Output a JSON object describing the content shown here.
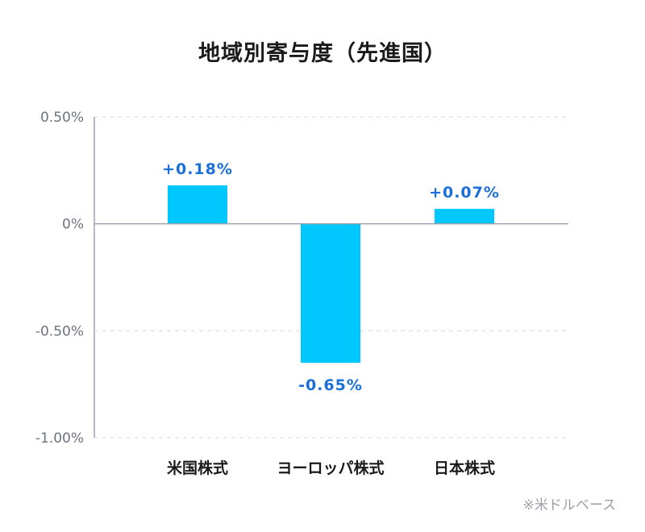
{
  "chart_data": {
    "type": "bar",
    "title": "地域別寄与度（先進国）",
    "categories": [
      "米国株式",
      "ヨーロッパ株式",
      "日本株式"
    ],
    "values": [
      0.18,
      -0.65,
      0.07
    ],
    "data_labels": [
      "+0.18%",
      "-0.65%",
      "+0.07%"
    ],
    "ylim": [
      -1.0,
      0.5
    ],
    "yticks": [
      0.5,
      0,
      -0.5,
      -1.0
    ],
    "ytick_labels": [
      "0.50%",
      "0%",
      "-0.50%",
      "-1.00%"
    ],
    "grid": true,
    "bar_color": "#00c8ff",
    "label_color": "#1a6fd8",
    "footnote": "※米ドルベース"
  }
}
